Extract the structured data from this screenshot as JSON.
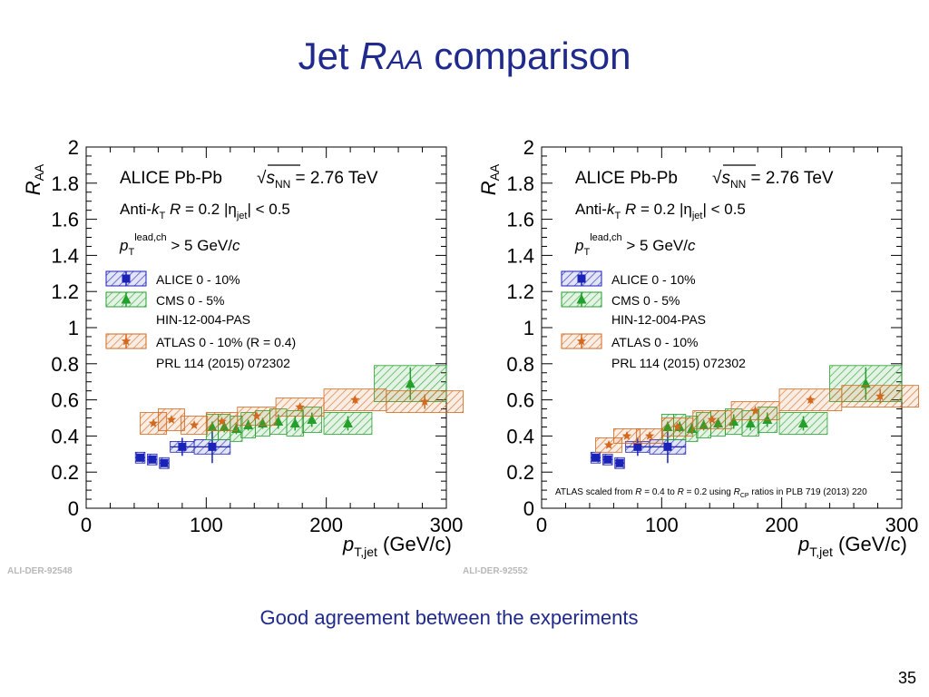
{
  "slide": {
    "title_prefix": "Jet ",
    "title_italic": "R",
    "title_sub": "AA",
    "title_suffix": " comparison",
    "bottom_text": "Good agreement between the experiments",
    "page_number": "35"
  },
  "colors": {
    "alice": "#1a22b8",
    "cms": "#22a02a",
    "atlas": "#d2691e",
    "title": "#1f2a8c"
  },
  "chart_data": [
    {
      "type": "scatter",
      "panel_id": "ALI-DER-92548",
      "ylabel_main": "R",
      "ylabel_sub": "AA",
      "xlabel_main": "p",
      "xlabel_sub": "T,jet",
      "xlabel_unit": "(GeV/c)",
      "xlim": [
        0,
        300
      ],
      "ylim": [
        0,
        2
      ],
      "x_ticks": [
        "0",
        "100",
        "200",
        "300"
      ],
      "y_ticks": [
        "0",
        "0.2",
        "0.4",
        "0.6",
        "0.8",
        "1",
        "1.2",
        "1.4",
        "1.6",
        "1.8",
        "2"
      ],
      "grid": false,
      "legend_position": "top-left",
      "header_lines": [
        "ALICE  Pb-Pb",
        "√sNN = 2.76 TeV",
        "Anti-kT  R = 0.2  |ηjet| < 0.5",
        "pTlead,ch > 5 GeV/c"
      ],
      "legend": [
        "ALICE 0 - 10%",
        "CMS 0 - 5%",
        "HIN-12-004-PAS",
        "ATLAS 0 - 10% (R = 0.4)",
        "PRL 114 (2015) 072302"
      ],
      "annotation": "",
      "series": [
        {
          "name": "ALICE 0 - 10%",
          "color": "alice",
          "marker": "square",
          "points": [
            {
              "x": 45,
              "y": 0.28,
              "xerr": 4,
              "yerr": 0.01,
              "syst": 0.03
            },
            {
              "x": 55,
              "y": 0.27,
              "xerr": 4,
              "yerr": 0.01,
              "syst": 0.03
            },
            {
              "x": 65,
              "y": 0.25,
              "xerr": 4,
              "yerr": 0.02,
              "syst": 0.03
            },
            {
              "x": 80,
              "y": 0.34,
              "xerr": 10,
              "yerr": 0.05,
              "syst": 0.03
            },
            {
              "x": 105,
              "y": 0.34,
              "xerr": 15,
              "yerr": 0.09,
              "syst": 0.04
            }
          ]
        },
        {
          "name": "CMS 0 - 5%",
          "color": "cms",
          "marker": "triangle",
          "points": [
            {
              "x": 105,
              "y": 0.45,
              "xerr": 5,
              "yerr": 0.03,
              "syst": 0.07
            },
            {
              "x": 115,
              "y": 0.45,
              "xerr": 5,
              "yerr": 0.03,
              "syst": 0.07
            },
            {
              "x": 125,
              "y": 0.44,
              "xerr": 5,
              "yerr": 0.03,
              "syst": 0.07
            },
            {
              "x": 135,
              "y": 0.46,
              "xerr": 6,
              "yerr": 0.03,
              "syst": 0.07
            },
            {
              "x": 147,
              "y": 0.47,
              "xerr": 6,
              "yerr": 0.03,
              "syst": 0.07
            },
            {
              "x": 160,
              "y": 0.48,
              "xerr": 7,
              "yerr": 0.04,
              "syst": 0.07
            },
            {
              "x": 174,
              "y": 0.47,
              "xerr": 7,
              "yerr": 0.04,
              "syst": 0.07
            },
            {
              "x": 188,
              "y": 0.49,
              "xerr": 8,
              "yerr": 0.04,
              "syst": 0.07
            },
            {
              "x": 218,
              "y": 0.47,
              "xerr": 20,
              "yerr": 0.04,
              "syst": 0.06
            },
            {
              "x": 270,
              "y": 0.69,
              "xerr": 30,
              "yerr": 0.09,
              "syst": 0.1
            }
          ]
        },
        {
          "name": "ATLAS 0 - 10% (R = 0.4)",
          "color": "atlas",
          "marker": "star",
          "points": [
            {
              "x": 56,
              "y": 0.47,
              "xerr": 11,
              "yerr": 0.01,
              "syst": 0.06
            },
            {
              "x": 71,
              "y": 0.49,
              "xerr": 11,
              "yerr": 0.01,
              "syst": 0.06
            },
            {
              "x": 90,
              "y": 0.46,
              "xerr": 11,
              "yerr": 0.01,
              "syst": 0.05
            },
            {
              "x": 113,
              "y": 0.48,
              "xerr": 13,
              "yerr": 0.01,
              "syst": 0.05
            },
            {
              "x": 142,
              "y": 0.51,
              "xerr": 16,
              "yerr": 0.01,
              "syst": 0.05
            },
            {
              "x": 178,
              "y": 0.56,
              "xerr": 20,
              "yerr": 0.01,
              "syst": 0.05
            },
            {
              "x": 224,
              "y": 0.6,
              "xerr": 26,
              "yerr": 0.02,
              "syst": 0.06
            },
            {
              "x": 282,
              "y": 0.59,
              "xerr": 32,
              "yerr": 0.04,
              "syst": 0.06
            }
          ]
        }
      ]
    },
    {
      "type": "scatter",
      "panel_id": "ALI-DER-92552",
      "ylabel_main": "R",
      "ylabel_sub": "AA",
      "xlabel_main": "p",
      "xlabel_sub": "T,jet",
      "xlabel_unit": "(GeV/c)",
      "xlim": [
        0,
        300
      ],
      "ylim": [
        0,
        2
      ],
      "x_ticks": [
        "0",
        "100",
        "200",
        "300"
      ],
      "y_ticks": [
        "0",
        "0.2",
        "0.4",
        "0.6",
        "0.8",
        "1",
        "1.2",
        "1.4",
        "1.6",
        "1.8",
        "2"
      ],
      "grid": false,
      "legend_position": "top-left",
      "header_lines": [
        "ALICE  Pb-Pb",
        "√sNN = 2.76 TeV",
        "Anti-kT  R = 0.2  |ηjet| < 0.5",
        "pTlead,ch > 5 GeV/c"
      ],
      "legend": [
        "ALICE 0 - 10%",
        "CMS 0 - 5%",
        "HIN-12-004-PAS",
        "ATLAS 0 - 10%",
        "PRL 114 (2015) 072302"
      ],
      "annotation": "ATLAS scaled from R = 0.4 to R = 0.2 using RCP ratios in PLB 719 (2013) 220",
      "series": [
        {
          "name": "ALICE 0 - 10%",
          "color": "alice",
          "marker": "square",
          "points": [
            {
              "x": 45,
              "y": 0.28,
              "xerr": 4,
              "yerr": 0.01,
              "syst": 0.03
            },
            {
              "x": 55,
              "y": 0.27,
              "xerr": 4,
              "yerr": 0.01,
              "syst": 0.03
            },
            {
              "x": 65,
              "y": 0.25,
              "xerr": 4,
              "yerr": 0.02,
              "syst": 0.03
            },
            {
              "x": 80,
              "y": 0.34,
              "xerr": 10,
              "yerr": 0.05,
              "syst": 0.03
            },
            {
              "x": 105,
              "y": 0.34,
              "xerr": 15,
              "yerr": 0.09,
              "syst": 0.04
            }
          ]
        },
        {
          "name": "CMS 0 - 5%",
          "color": "cms",
          "marker": "triangle",
          "points": [
            {
              "x": 105,
              "y": 0.45,
              "xerr": 5,
              "yerr": 0.03,
              "syst": 0.07
            },
            {
              "x": 115,
              "y": 0.45,
              "xerr": 5,
              "yerr": 0.03,
              "syst": 0.07
            },
            {
              "x": 125,
              "y": 0.44,
              "xerr": 5,
              "yerr": 0.03,
              "syst": 0.07
            },
            {
              "x": 135,
              "y": 0.46,
              "xerr": 6,
              "yerr": 0.03,
              "syst": 0.07
            },
            {
              "x": 147,
              "y": 0.47,
              "xerr": 6,
              "yerr": 0.03,
              "syst": 0.07
            },
            {
              "x": 160,
              "y": 0.48,
              "xerr": 7,
              "yerr": 0.04,
              "syst": 0.07
            },
            {
              "x": 174,
              "y": 0.47,
              "xerr": 7,
              "yerr": 0.04,
              "syst": 0.07
            },
            {
              "x": 188,
              "y": 0.49,
              "xerr": 8,
              "yerr": 0.04,
              "syst": 0.07
            },
            {
              "x": 218,
              "y": 0.47,
              "xerr": 20,
              "yerr": 0.04,
              "syst": 0.06
            },
            {
              "x": 270,
              "y": 0.69,
              "xerr": 30,
              "yerr": 0.09,
              "syst": 0.1
            }
          ]
        },
        {
          "name": "ATLAS 0 - 10%",
          "color": "atlas",
          "marker": "star",
          "points": [
            {
              "x": 56,
              "y": 0.35,
              "xerr": 11,
              "yerr": 0.01,
              "syst": 0.04
            },
            {
              "x": 71,
              "y": 0.4,
              "xerr": 11,
              "yerr": 0.01,
              "syst": 0.04
            },
            {
              "x": 90,
              "y": 0.4,
              "xerr": 11,
              "yerr": 0.01,
              "syst": 0.04
            },
            {
              "x": 113,
              "y": 0.45,
              "xerr": 13,
              "yerr": 0.01,
              "syst": 0.05
            },
            {
              "x": 142,
              "y": 0.49,
              "xerr": 16,
              "yerr": 0.01,
              "syst": 0.05
            },
            {
              "x": 178,
              "y": 0.54,
              "xerr": 20,
              "yerr": 0.01,
              "syst": 0.05
            },
            {
              "x": 224,
              "y": 0.6,
              "xerr": 26,
              "yerr": 0.02,
              "syst": 0.06
            },
            {
              "x": 282,
              "y": 0.62,
              "xerr": 32,
              "yerr": 0.04,
              "syst": 0.06
            }
          ]
        }
      ]
    }
  ]
}
